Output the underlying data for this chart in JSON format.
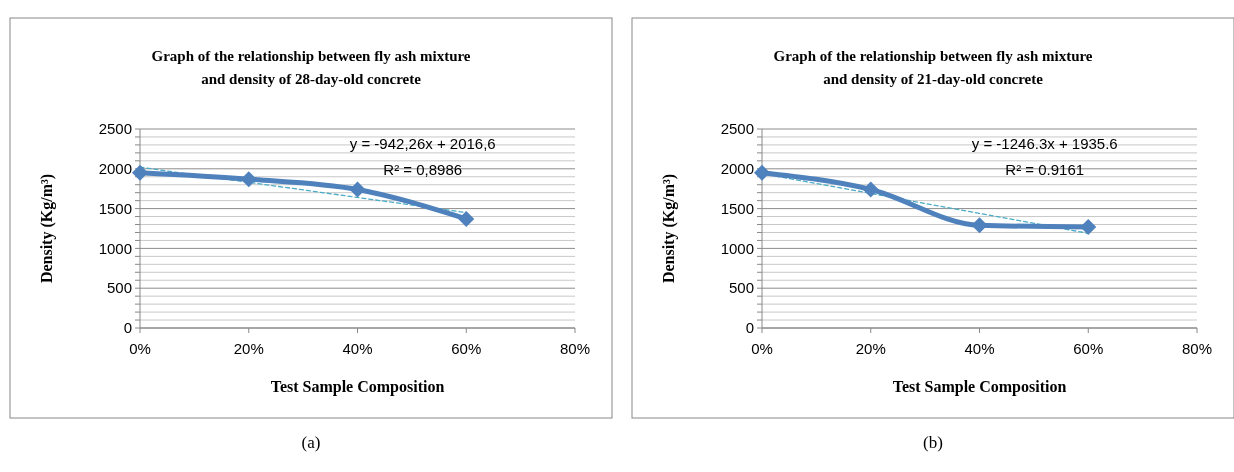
{
  "chart_data": [
    {
      "type": "line",
      "title": "Graph of the relationship between fly ash mixture\nand density of 28-day-old concrete",
      "xlabel": "Test Sample Composition",
      "ylabel": "Density (Kg/m³)",
      "x": [
        0,
        0.2,
        0.4,
        0.6
      ],
      "marker": "diamond",
      "grid": "y",
      "series": [
        {
          "color": "#4f81bd",
          "values": [
            1950,
            1870,
            1740,
            1370
          ]
        },
        {
          "type": "line",
          "values": [
            2020,
            1830,
            1640,
            1450
          ],
          "color": "#4bacc6",
          "line_style": "dashed",
          "marker": "none"
        }
      ],
      "xlim": [
        0,
        0.8
      ],
      "xticks": [
        {
          "value": 0,
          "label": "0%"
        },
        {
          "value": 0.2,
          "label": "20%"
        },
        {
          "value": 0.4,
          "label": "40%"
        },
        {
          "value": 0.6,
          "label": "60%"
        },
        {
          "value": 0.8,
          "label": "80%"
        }
      ],
      "ylim": [
        0,
        2500
      ],
      "yticks": [
        0,
        {
          "value": 100,
          "label": null
        },
        {
          "value": 200,
          "label": null
        },
        {
          "value": 300,
          "label": null
        },
        {
          "value": 400,
          "label": null
        },
        500,
        {
          "value": 600,
          "label": null
        },
        {
          "value": 700,
          "label": null
        },
        {
          "value": 800,
          "label": null
        },
        {
          "value": 900,
          "label": null
        },
        1000,
        {
          "value": 1100,
          "label": null
        },
        {
          "value": 1200,
          "label": null
        },
        {
          "value": 1300,
          "label": null
        },
        {
          "value": 1400,
          "label": null
        },
        1500,
        {
          "value": 1600,
          "label": null
        },
        {
          "value": 1700,
          "label": null
        },
        {
          "value": 1800,
          "label": null
        },
        {
          "value": 1900,
          "label": null
        },
        2000,
        {
          "value": 2100,
          "label": null
        },
        {
          "value": 2200,
          "label": null
        },
        {
          "value": 2300,
          "label": null
        },
        {
          "value": 2400,
          "label": null
        },
        2500
      ],
      "annotations": [
        "y = -942,26x + 2016,6",
        "R² = 0,8986",
        "(a)"
      ]
    },
    {
      "type": "line",
      "title": "Graph of the relationship between fly ash mixture\nand density of 21-day-old concrete",
      "xlabel": "Test Sample Composition",
      "ylabel": "Density (Kg/m³)",
      "x": [
        0,
        0.2,
        0.4,
        0.6
      ],
      "marker": "diamond",
      "grid": "y",
      "series": [
        {
          "color": "#4f81bd",
          "values": [
            1950,
            1740,
            1290,
            1270
          ]
        },
        {
          "type": "line",
          "values": [
            1940,
            1690,
            1440,
            1190
          ],
          "color": "#4bacc6",
          "line_style": "dashed",
          "marker": "none"
        }
      ],
      "xlim": [
        0,
        0.8
      ],
      "xticks": [
        {
          "value": 0,
          "label": "0%"
        },
        {
          "value": 0.2,
          "label": "20%"
        },
        {
          "value": 0.4,
          "label": "40%"
        },
        {
          "value": 0.6,
          "label": "60%"
        },
        {
          "value": 0.8,
          "label": "80%"
        }
      ],
      "ylim": [
        0,
        2500
      ],
      "yticks": [
        0,
        {
          "value": 100,
          "label": null
        },
        {
          "value": 200,
          "label": null
        },
        {
          "value": 300,
          "label": null
        },
        {
          "value": 400,
          "label": null
        },
        500,
        {
          "value": 600,
          "label": null
        },
        {
          "value": 700,
          "label": null
        },
        {
          "value": 800,
          "label": null
        },
        {
          "value": 900,
          "label": null
        },
        1000,
        {
          "value": 1100,
          "label": null
        },
        {
          "value": 1200,
          "label": null
        },
        {
          "value": 1300,
          "label": null
        },
        {
          "value": 1400,
          "label": null
        },
        1500,
        {
          "value": 1600,
          "label": null
        },
        {
          "value": 1700,
          "label": null
        },
        {
          "value": 1800,
          "label": null
        },
        {
          "value": 1900,
          "label": null
        },
        2000,
        {
          "value": 2100,
          "label": null
        },
        {
          "value": 2200,
          "label": null
        },
        {
          "value": 2300,
          "label": null
        },
        {
          "value": 2400,
          "label": null
        },
        2500
      ],
      "annotations": [
        "y = -1246.3x + 1935.6",
        "R² = 0.9161",
        "(b)"
      ]
    }
  ]
}
